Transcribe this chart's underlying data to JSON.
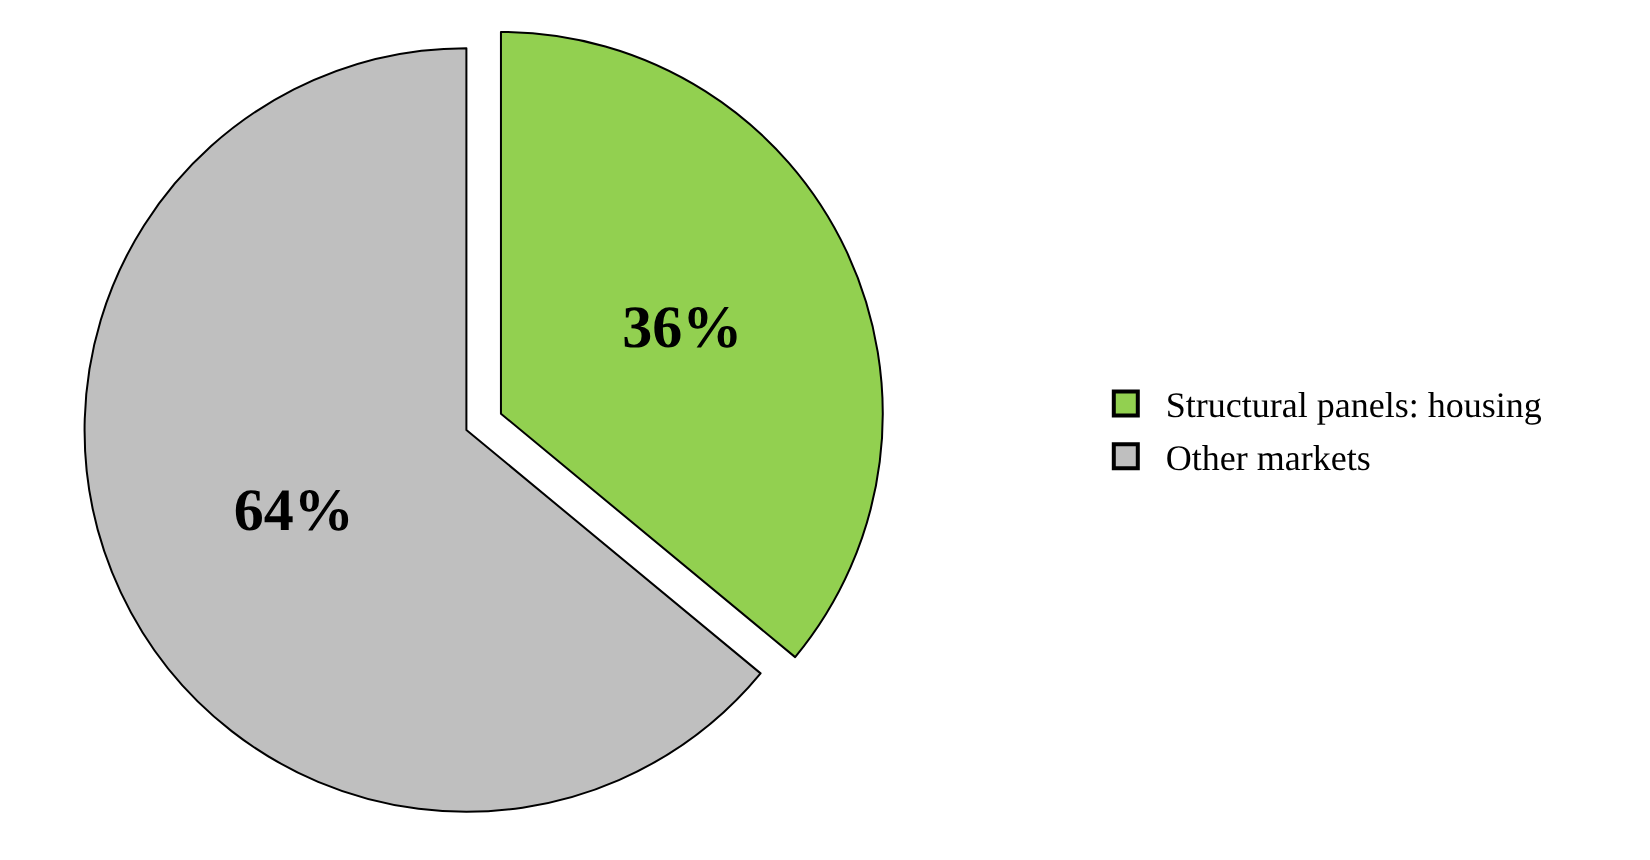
{
  "chart_data": {
    "type": "pie",
    "categories": [
      "Structural panels: housing",
      "Other markets"
    ],
    "values": [
      36,
      64
    ],
    "colors": [
      "#92d050",
      "#bfbfbf"
    ],
    "value_labels": [
      "36%",
      "64%"
    ],
    "legend": "right"
  }
}
